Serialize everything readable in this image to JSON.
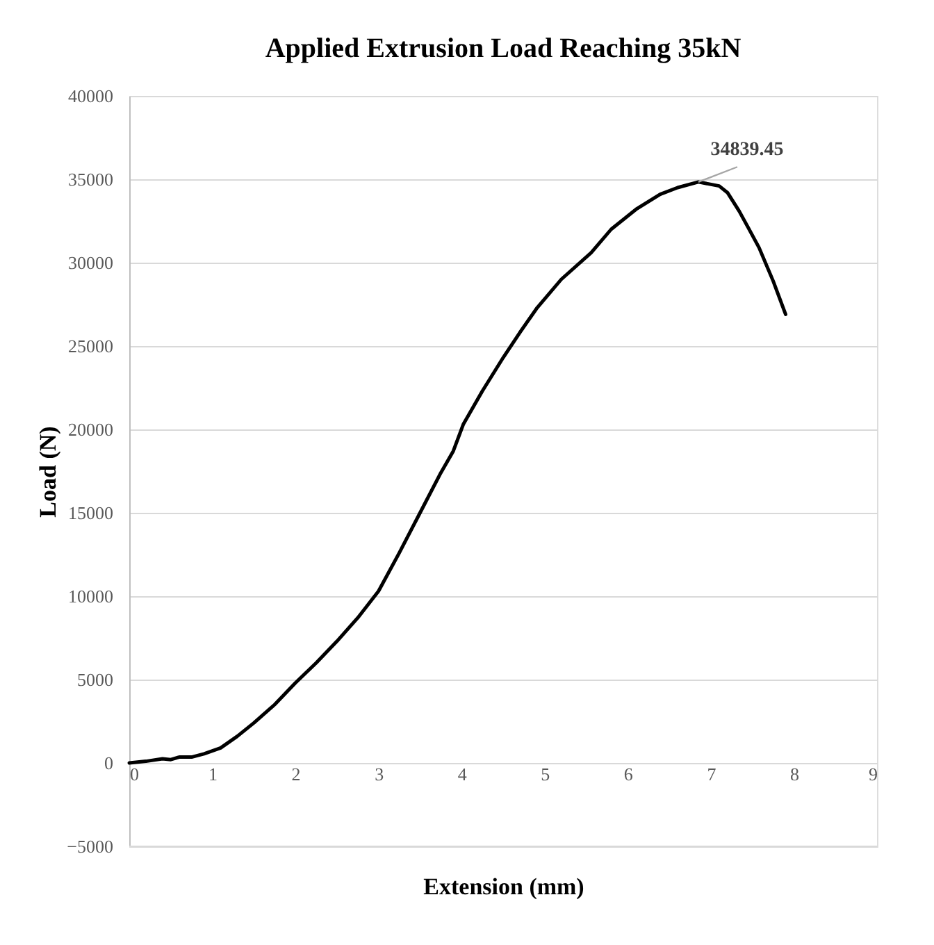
{
  "chart_data": {
    "type": "line",
    "title": "Applied Extrusion Load Reaching 35kN",
    "xlabel": "Extension (mm)",
    "ylabel": "Load (N)",
    "x": [
      0,
      0.2,
      0.4,
      0.5,
      0.6,
      0.75,
      0.9,
      1.1,
      1.3,
      1.5,
      1.75,
      2,
      2.25,
      2.5,
      2.75,
      3,
      3.25,
      3.5,
      3.75,
      3.9,
      4.02,
      4.25,
      4.5,
      4.7,
      4.91,
      5.2,
      5.56,
      5.8,
      6.1,
      6.39,
      6.6,
      6.85,
      7.1,
      7.2,
      7.34,
      7.45,
      7.58,
      7.75,
      7.9
    ],
    "series": [
      {
        "color": "#000000",
        "values": [
          0,
          100,
          250,
          200,
          350,
          350,
          550,
          900,
          1600,
          2400,
          3500,
          4800,
          6000,
          7300,
          8700,
          10300,
          12600,
          15000,
          17400,
          18700,
          20300,
          22300,
          24300,
          25800,
          27300,
          29000,
          30600,
          32000,
          33200,
          34100,
          34500,
          34839.45,
          34600,
          34200,
          33100,
          32100,
          30900,
          28900,
          26900
        ]
      }
    ],
    "annotations": [
      {
        "text": "34839.45",
        "x": 6.85,
        "y": 34839.45
      }
    ],
    "xlim": [
      0,
      9
    ],
    "xticks": [
      0,
      1,
      2,
      3,
      4,
      5,
      6,
      7,
      8,
      9
    ],
    "ylim": [
      -5000,
      40000
    ],
    "yticks": [
      -5000,
      0,
      5000,
      10000,
      15000,
      20000,
      25000,
      30000,
      35000,
      40000
    ],
    "grid": "y",
    "marker": "none",
    "line_style": "solid"
  }
}
